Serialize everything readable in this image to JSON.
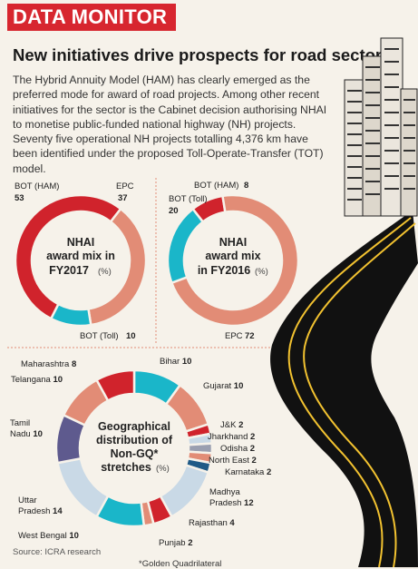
{
  "header": {
    "tag": "DATA MONITOR"
  },
  "headline": "New initiatives drive prospects for road sector",
  "intro": "The Hybrid Annuity Model (HAM) has clearly emerged as the preferred mode for award of road projects. Among other recent initiatives for the sector is the Cabinet decision authorising NHAI to monetise public-funded national highway (NH) projects. Seventy five operational NH projects totalling 4,376 km have been identified under the proposed Toll-Operate-Transfer (TOT) model.",
  "colors": {
    "red": "#d0232c",
    "salmon": "#e28c76",
    "cyan": "#1ab6c9",
    "purple": "#5e5a8e",
    "lightblue": "#c9d9e6",
    "gray": "#9a9fb0",
    "navy": "#1f5a86",
    "road": "#111111",
    "lane": "#f2c230"
  },
  "chart_data": [
    {
      "type": "pie",
      "title": "NHAI award mix in FY2017",
      "unit": "(%)",
      "series": [
        {
          "label": "BOT (HAM)",
          "value": 53,
          "color": "#d0232c"
        },
        {
          "label": "EPC",
          "value": 37,
          "color": "#e28c76"
        },
        {
          "label": "BOT (Toll)",
          "value": 10,
          "color": "#1ab6c9"
        }
      ]
    },
    {
      "type": "pie",
      "title": "NHAI award mix in FY2016",
      "unit": "(%)",
      "series": [
        {
          "label": "BOT (HAM)",
          "value": 8,
          "color": "#d0232c"
        },
        {
          "label": "EPC",
          "value": 72,
          "color": "#e28c76"
        },
        {
          "label": "BOT (Toll)",
          "value": 20,
          "color": "#1ab6c9"
        }
      ]
    },
    {
      "type": "pie",
      "title": "Geographical distribution of Non-GQ* stretches",
      "unit": "(%)",
      "series": [
        {
          "label": "Bihar",
          "value": 10,
          "color": "#1ab6c9"
        },
        {
          "label": "Gujarat",
          "value": 10,
          "color": "#e28c76"
        },
        {
          "label": "J&K",
          "value": 2,
          "color": "#d0232c"
        },
        {
          "label": "Jharkhand",
          "value": 2,
          "color": "#c9d9e6"
        },
        {
          "label": "Odisha",
          "value": 2,
          "color": "#9a9fb0"
        },
        {
          "label": "North East",
          "value": 2,
          "color": "#e28c76"
        },
        {
          "label": "Karnataka",
          "value": 2,
          "color": "#1f5a86"
        },
        {
          "label": "Madhya Pradesh",
          "value": 12,
          "color": "#c9d9e6"
        },
        {
          "label": "Rajasthan",
          "value": 4,
          "color": "#d0232c"
        },
        {
          "label": "Punjab",
          "value": 2,
          "color": "#e28c76"
        },
        {
          "label": "West Bengal",
          "value": 10,
          "color": "#1ab6c9"
        },
        {
          "label": "Uttar Pradesh",
          "value": 14,
          "color": "#c9d9e6"
        },
        {
          "label": "Tamil Nadu",
          "value": 10,
          "color": "#5e5a8e"
        },
        {
          "label": "Telangana",
          "value": 10,
          "color": "#e28c76"
        },
        {
          "label": "Maharashtra",
          "value": 8,
          "color": "#d0232c"
        }
      ]
    }
  ],
  "chart_labels": {
    "fy17": [
      {
        "name": "BOT (HAM)",
        "value": "53"
      },
      {
        "name": "EPC",
        "value": "37"
      },
      {
        "name": "BOT (Toll)",
        "value": "10"
      }
    ],
    "fy16": [
      {
        "name": "BOT (HAM)",
        "value": "8"
      },
      {
        "name": "BOT (Toll)",
        "value": "20"
      },
      {
        "name": "EPC",
        "value": "72"
      }
    ],
    "fy17_center": [
      "NHAI",
      "award mix in",
      "FY2017"
    ],
    "fy16_center": [
      "NHAI",
      "award mix",
      "in FY2016"
    ],
    "geo_center": [
      "Geographical",
      "distribution of",
      "Non-GQ*",
      "stretches"
    ],
    "unit": "(%)",
    "geo": [
      {
        "name": "Bihar",
        "value": "10"
      },
      {
        "name": "Gujarat",
        "value": "10"
      },
      {
        "name": "J&K",
        "value": "2"
      },
      {
        "name": "Jharkhand",
        "value": "2"
      },
      {
        "name": "Odisha",
        "value": "2"
      },
      {
        "name": "North East",
        "value": "2"
      },
      {
        "name": "Karnataka",
        "value": "2"
      },
      {
        "name": "Madhya",
        "value": ""
      },
      {
        "name": "Pradesh",
        "value": "12"
      },
      {
        "name": "Rajasthan",
        "value": "4"
      },
      {
        "name": "Punjab",
        "value": "2"
      },
      {
        "name": "West Bengal",
        "value": "10"
      },
      {
        "name": "Uttar",
        "value": ""
      },
      {
        "name": "Pradesh",
        "value": "14"
      },
      {
        "name": "Tamil",
        "value": ""
      },
      {
        "name": "Nadu",
        "value": "10"
      },
      {
        "name": "Telangana",
        "value": "10"
      },
      {
        "name": "Maharashtra",
        "value": "8"
      }
    ]
  },
  "source": "Source: ICRA research",
  "footnote": "*Golden Quadrilateral"
}
